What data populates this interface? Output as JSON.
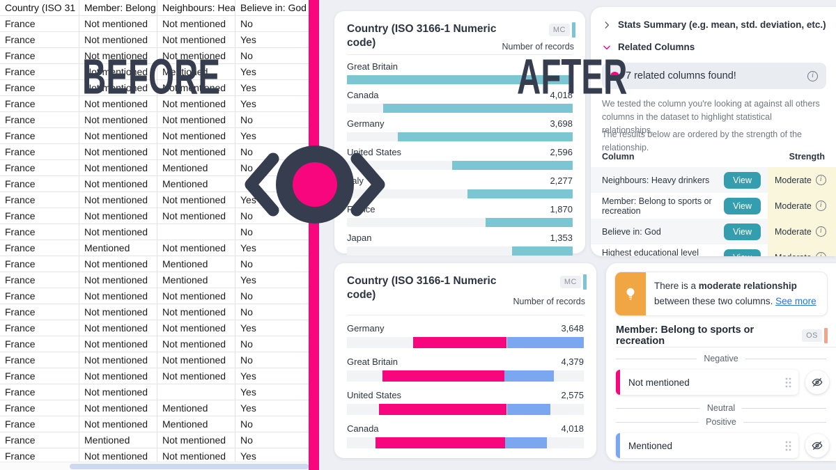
{
  "overlay": {
    "before": "BEFORE",
    "after": "AFTER"
  },
  "colors": {
    "pink": "#F8067E",
    "blue": "#7AA7F0",
    "teal_bar": "#7CC5D3",
    "teal_button": "#359EAE",
    "dark_slate": "#353D4E",
    "orange": "#F0A643",
    "salmon": "#F2A58B",
    "strength_yellow": "#FAF6DC",
    "panel_bg": "#edeff4"
  },
  "spreadsheet": {
    "headers": [
      "Country (ISO 31",
      "Member: Belong",
      "Neighbours: Hea",
      "Believe in: God"
    ],
    "rows": [
      [
        "France",
        "Not mentioned",
        "Not mentioned",
        "No"
      ],
      [
        "France",
        "Not mentioned",
        "Not mentioned",
        "Yes"
      ],
      [
        "France",
        "Not mentioned",
        "Not mentioned",
        "No"
      ],
      [
        "France",
        "Not mentioned",
        "Mentioned",
        "Yes"
      ],
      [
        "France",
        "Not mentioned",
        "Not mentioned",
        "Yes"
      ],
      [
        "France",
        "Not mentioned",
        "Not mentioned",
        "Yes"
      ],
      [
        "France",
        "Not mentioned",
        "Not mentioned",
        "No"
      ],
      [
        "France",
        "Not mentioned",
        "Not mentioned",
        "Yes"
      ],
      [
        "France",
        "Not mentioned",
        "Not mentioned",
        "No"
      ],
      [
        "France",
        "Not mentioned",
        "Mentioned",
        "No"
      ],
      [
        "France",
        "Not mentioned",
        "Mentioned",
        ""
      ],
      [
        "France",
        "Not mentioned",
        "Not mentioned",
        "Yes"
      ],
      [
        "France",
        "Not mentioned",
        "Not mentioned",
        "No"
      ],
      [
        "France",
        "Not mentioned",
        "",
        "No"
      ],
      [
        "France",
        "Mentioned",
        "Not mentioned",
        "Yes"
      ],
      [
        "France",
        "Not mentioned",
        "Mentioned",
        "No"
      ],
      [
        "France",
        "Not mentioned",
        "Mentioned",
        "Yes"
      ],
      [
        "France",
        "Not mentioned",
        "Not mentioned",
        "No"
      ],
      [
        "France",
        "Not mentioned",
        "Not mentioned",
        "No"
      ],
      [
        "France",
        "Not mentioned",
        "Not mentioned",
        "Yes"
      ],
      [
        "France",
        "Not mentioned",
        "Not mentioned",
        "No"
      ],
      [
        "France",
        "Not mentioned",
        "Not mentioned",
        "No"
      ],
      [
        "France",
        "Not mentioned",
        "Not mentioned",
        "Yes"
      ],
      [
        "France",
        "Not mentioned",
        "",
        "Yes"
      ],
      [
        "France",
        "Not mentioned",
        "Mentioned",
        "Yes"
      ],
      [
        "France",
        "Not mentioned",
        "Mentioned",
        "No"
      ],
      [
        "France",
        "Mentioned",
        "Not mentioned",
        "No"
      ],
      [
        "France",
        "Not mentioned",
        "Not mentioned",
        "Yes"
      ]
    ]
  },
  "chart_data": [
    {
      "type": "bar",
      "title": "Country (ISO 3166-1 Numeric code)",
      "badge": "MC",
      "value_axis": "Number of records",
      "bar_color": "#7CC5D3",
      "align": "right",
      "bars": [
        {
          "label": "Great Britain",
          "value": null,
          "value_text": "",
          "fill": 1.0
        },
        {
          "label": "Canada",
          "value": 4018,
          "value_text": "4,018",
          "fill": 0.84
        },
        {
          "label": "Germany",
          "value": 3698,
          "value_text": "3,698",
          "fill": 0.775
        },
        {
          "label": "United States",
          "value": 2596,
          "value_text": "2,596",
          "fill": 0.535
        },
        {
          "label": "Italy",
          "value": 2277,
          "value_text": "2,277",
          "fill": 0.465
        },
        {
          "label": "France",
          "value": 1870,
          "value_text": "1,870",
          "fill": 0.385
        },
        {
          "label": "Japan",
          "value": 1353,
          "value_text": "1,353",
          "fill": 0.27
        }
      ]
    },
    {
      "type": "diverging-stacked-bar",
      "title": "Country (ISO 3166-1 Numeric code)",
      "badge": "MC",
      "value_axis": "Number of records",
      "negative_series": "Not mentioned",
      "positive_series": "Mentioned",
      "negative_color": "#F8067E",
      "positive_color": "#7AA7F0",
      "bars": [
        {
          "label": "Germany",
          "value": 3648,
          "value_text": "3,648",
          "neg": [
            0.28,
            0.675
          ],
          "pos": [
            0.675,
            1.0
          ]
        },
        {
          "label": "Great Britain",
          "value": 4379,
          "value_text": "4,379",
          "neg": [
            0.15,
            0.665
          ],
          "pos": [
            0.665,
            0.875
          ]
        },
        {
          "label": "United States",
          "value": 2575,
          "value_text": "2,575",
          "neg": [
            0.135,
            0.675
          ],
          "pos": [
            0.675,
            0.86
          ]
        },
        {
          "label": "Canada",
          "value": 4018,
          "value_text": "4,018",
          "neg": [
            0.12,
            0.668
          ],
          "pos": [
            0.668,
            0.843
          ]
        }
      ]
    }
  ],
  "stats_panel": {
    "stats_summary_label": "Stats Summary (e.g. mean, std. deviation, etc.)",
    "related_columns_label": "Related Columns",
    "banner_text": "7 related columns found!",
    "description_1": "We tested the column you're looking at against all others columns in the dataset to highlight statistical relationships.",
    "description_2": "The results below are ordered by the strength of the relationship.",
    "table": {
      "column_header": "Column",
      "strength_header": "Strength",
      "rows": [
        {
          "column": "Neighbours: Heavy drinkers",
          "action": "View",
          "strength": "Moderate"
        },
        {
          "column": "Member: Belong to sports or recreation",
          "action": "View",
          "strength": "Moderate"
        },
        {
          "column": "Believe in: God",
          "action": "View",
          "strength": "Moderate"
        },
        {
          "column": "Highest educational level attained",
          "action": "View",
          "strength": "Moderate"
        }
      ]
    }
  },
  "relationship_panel": {
    "callout_prefix": "There is a ",
    "callout_bold": "moderate relationship",
    "callout_suffix": "between these two columns. ",
    "callout_link": "See more",
    "column_title": "Member: Belong to sports or recreation",
    "badge": "OS",
    "sections": [
      {
        "label": "Negative",
        "items": [
          {
            "label": "Not mentioned",
            "color": "#F8067E"
          }
        ]
      },
      {
        "label": "Neutral",
        "items": []
      },
      {
        "label": "Positive",
        "items": [
          {
            "label": "Mentioned",
            "color": "#7AA7F0"
          }
        ]
      }
    ]
  }
}
